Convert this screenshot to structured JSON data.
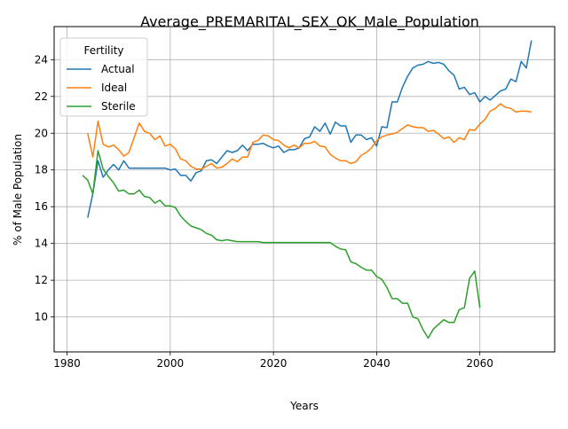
{
  "chart_data": {
    "type": "line",
    "title": "Average_PREMARITAL_SEX_OK_Male_Population",
    "xlabel": "Years",
    "ylabel": "% of Male Population",
    "xlim": [
      1977.5,
      2074.5
    ],
    "ylim": [
      8.1,
      25.8
    ],
    "xticks": [
      1980,
      2000,
      2020,
      2040,
      2060
    ],
    "yticks": [
      10,
      12,
      14,
      16,
      18,
      20,
      22,
      24
    ],
    "grid": true,
    "legend": {
      "title": "Fertility",
      "placement": "top-left"
    },
    "series": [
      {
        "name": "Actual",
        "color": "#1f77b4",
        "x": [
          1984,
          1985,
          1986,
          1987,
          1988,
          1989,
          1990,
          1991,
          1992,
          1993,
          1994,
          1995,
          1996,
          1997,
          1998,
          1999,
          2000,
          2001,
          2002,
          2003,
          2004,
          2005,
          2006,
          2007,
          2008,
          2009,
          2010,
          2011,
          2012,
          2013,
          2014,
          2015,
          2016,
          2017,
          2018,
          2019,
          2020,
          2021,
          2022,
          2023,
          2024,
          2025,
          2026,
          2027,
          2028,
          2029,
          2030,
          2031,
          2032,
          2033,
          2034,
          2035,
          2036,
          2037,
          2038,
          2039,
          2040,
          2041,
          2042,
          2043,
          2044,
          2045,
          2046,
          2047,
          2048,
          2049,
          2050,
          2051,
          2052,
          2053,
          2054,
          2055,
          2056,
          2057,
          2058,
          2059,
          2060,
          2061,
          2062,
          2063,
          2064,
          2065,
          2066,
          2067,
          2068,
          2069,
          2070
        ],
        "values": [
          15.4,
          16.7,
          18.5,
          17.6,
          18.0,
          18.3,
          18.0,
          18.5,
          18.1,
          18.1,
          18.1,
          18.1,
          18.1,
          18.1,
          18.1,
          18.1,
          18.0,
          18.05,
          17.7,
          17.7,
          17.4,
          17.85,
          17.95,
          18.5,
          18.55,
          18.35,
          18.7,
          19.05,
          18.95,
          19.05,
          19.35,
          19.05,
          19.4,
          19.4,
          19.45,
          19.3,
          19.2,
          19.3,
          18.95,
          19.1,
          19.1,
          19.2,
          19.7,
          19.8,
          20.35,
          20.1,
          20.55,
          19.95,
          20.6,
          20.4,
          20.4,
          19.5,
          19.9,
          19.9,
          19.65,
          19.75,
          19.3,
          20.35,
          20.3,
          21.7,
          21.7,
          22.5,
          23.1,
          23.55,
          23.7,
          23.75,
          23.9,
          23.8,
          23.85,
          23.75,
          23.4,
          23.15,
          22.4,
          22.5,
          22.1,
          22.2,
          21.7,
          22.0,
          21.8,
          22.05,
          22.3,
          22.4,
          22.95,
          22.8,
          23.9,
          23.55,
          25.05
        ]
      },
      {
        "name": "Ideal",
        "color": "#ff7f0e",
        "x": [
          1984,
          1985,
          1986,
          1987,
          1988,
          1989,
          1990,
          1991,
          1992,
          1993,
          1994,
          1995,
          1996,
          1997,
          1998,
          1999,
          2000,
          2001,
          2002,
          2003,
          2004,
          2005,
          2006,
          2007,
          2008,
          2009,
          2010,
          2011,
          2012,
          2013,
          2014,
          2015,
          2016,
          2017,
          2018,
          2019,
          2020,
          2021,
          2022,
          2023,
          2024,
          2025,
          2026,
          2027,
          2028,
          2029,
          2030,
          2031,
          2032,
          2033,
          2034,
          2035,
          2036,
          2037,
          2038,
          2039,
          2040,
          2041,
          2042,
          2043,
          2044,
          2045,
          2046,
          2047,
          2048,
          2049,
          2050,
          2051,
          2052,
          2053,
          2054,
          2055,
          2056,
          2057,
          2058,
          2059,
          2060,
          2061,
          2062,
          2063,
          2064,
          2065,
          2066,
          2067,
          2068,
          2069,
          2070
        ],
        "values": [
          20.0,
          18.7,
          20.65,
          19.4,
          19.25,
          19.35,
          19.1,
          18.75,
          18.95,
          19.75,
          20.55,
          20.1,
          20.0,
          19.65,
          19.85,
          19.3,
          19.4,
          19.15,
          18.6,
          18.5,
          18.2,
          18.05,
          18.05,
          18.2,
          18.35,
          18.1,
          18.15,
          18.35,
          18.6,
          18.45,
          18.7,
          18.7,
          19.5,
          19.6,
          19.9,
          19.85,
          19.65,
          19.6,
          19.35,
          19.2,
          19.35,
          19.2,
          19.45,
          19.45,
          19.55,
          19.3,
          19.25,
          18.85,
          18.65,
          18.5,
          18.5,
          18.35,
          18.45,
          18.8,
          18.95,
          19.2,
          19.6,
          19.8,
          19.9,
          19.95,
          20.05,
          20.25,
          20.45,
          20.35,
          20.3,
          20.3,
          20.1,
          20.15,
          19.95,
          19.7,
          19.8,
          19.5,
          19.75,
          19.65,
          20.2,
          20.15,
          20.5,
          20.75,
          21.2,
          21.35,
          21.6,
          21.4,
          21.35,
          21.15,
          21.2,
          21.2,
          21.15
        ]
      },
      {
        "name": "Sterile",
        "color": "#2ca02c",
        "x": [
          1983,
          1984,
          1985,
          1986,
          1987,
          1988,
          1989,
          1990,
          1991,
          1992,
          1993,
          1994,
          1995,
          1996,
          1997,
          1998,
          1999,
          2000,
          2001,
          2002,
          2003,
          2004,
          2005,
          2006,
          2007,
          2008,
          2009,
          2010,
          2011,
          2012,
          2013,
          2014,
          2015,
          2016,
          2017,
          2018,
          2019,
          2020,
          2021,
          2022,
          2023,
          2024,
          2025,
          2026,
          2027,
          2028,
          2029,
          2030,
          2031,
          2032,
          2033,
          2034,
          2035,
          2036,
          2037,
          2038,
          2039,
          2040,
          2041,
          2042,
          2043,
          2044,
          2045,
          2046,
          2047,
          2048,
          2049,
          2050,
          2051,
          2052,
          2053,
          2054,
          2055,
          2056,
          2057,
          2058,
          2059,
          2060
        ],
        "values": [
          17.7,
          17.45,
          16.7,
          19.05,
          18.05,
          17.65,
          17.3,
          16.85,
          16.9,
          16.7,
          16.7,
          16.9,
          16.55,
          16.5,
          16.2,
          16.35,
          16.05,
          16.05,
          15.95,
          15.5,
          15.2,
          14.95,
          14.85,
          14.75,
          14.55,
          14.45,
          14.2,
          14.15,
          14.2,
          14.15,
          14.1,
          14.1,
          14.1,
          14.1,
          14.1,
          14.05,
          14.05,
          14.05,
          14.05,
          14.05,
          14.05,
          14.05,
          14.05,
          14.05,
          14.05,
          14.05,
          14.05,
          14.05,
          14.05,
          13.85,
          13.7,
          13.65,
          13.0,
          12.9,
          12.7,
          12.55,
          12.55,
          12.2,
          12.05,
          11.6,
          11.0,
          11.0,
          10.75,
          10.75,
          10.0,
          9.9,
          9.3,
          8.85,
          9.35,
          9.6,
          9.85,
          9.7,
          9.7,
          10.4,
          10.5,
          12.1,
          12.5,
          10.5
        ]
      }
    ]
  }
}
